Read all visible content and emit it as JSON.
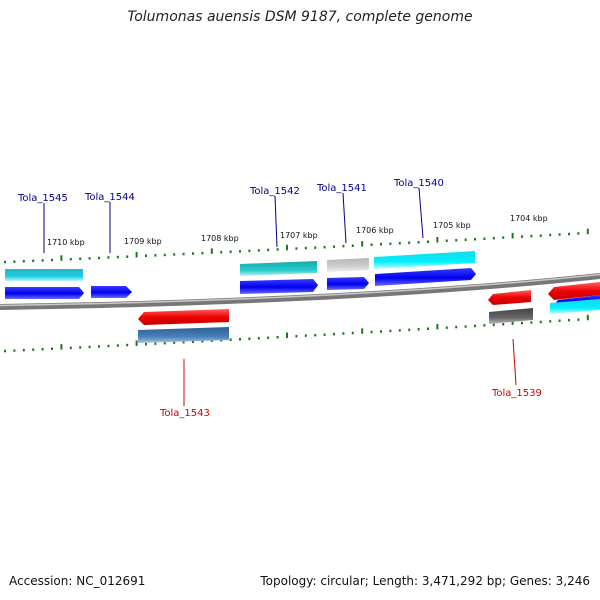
{
  "title": "Tolumonas auensis DSM 9187, complete genome",
  "footer": {
    "accession": "Accession: NC_012691",
    "topology": "Topology: circular; Length: 3,471,292 bp; Genes: 3,246"
  },
  "colors": {
    "forward_label": "#00008b",
    "reverse_label": "#cc0000",
    "tick": "#1a7a1a",
    "backbone": "#888888"
  },
  "scale_labels": [
    "1710 kbp",
    "1709 kbp",
    "1708 kbp",
    "1707 kbp",
    "1706 kbp",
    "1705 kbp",
    "1704 kbp"
  ],
  "genes": {
    "forward": [
      "Tola_1545",
      "Tola_1544",
      "Tola_1542",
      "Tola_1541",
      "Tola_1540"
    ],
    "reverse": [
      "Tola_1543",
      "Tola_1539"
    ]
  }
}
